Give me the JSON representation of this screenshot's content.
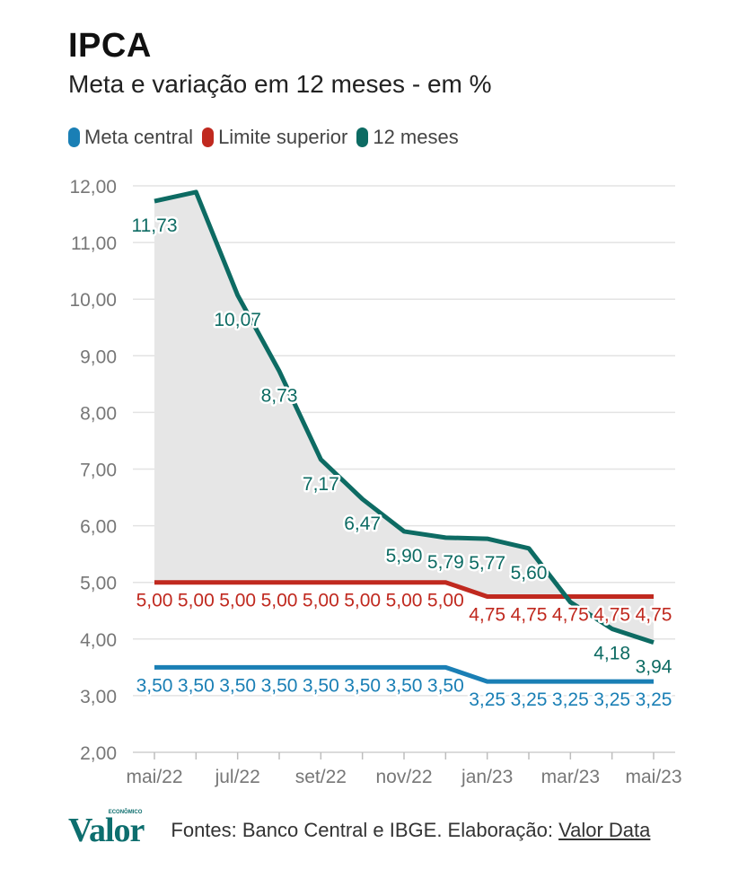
{
  "header": {
    "title": "IPCA",
    "subtitle": "Meta e variação em 12 meses - em %"
  },
  "legend": [
    {
      "label": "Meta central",
      "color": "#1a7fb5"
    },
    {
      "label": "Limite superior",
      "color": "#c0291f"
    },
    {
      "label": "12 meses",
      "color": "#0d6b63"
    }
  ],
  "footer": {
    "logo": "Valor",
    "logo_tag": "ECONÔMICO",
    "source_prefix": "Fontes: Banco Central e IBGE. Elaboração:",
    "source_link": "Valor Data"
  },
  "chart_data": {
    "type": "line",
    "title": "IPCA",
    "subtitle": "Meta e variação em 12 meses - em %",
    "xlabel": "",
    "ylabel": "",
    "ylim": [
      2,
      12
    ],
    "yticks": [
      "2,00",
      "3,00",
      "4,00",
      "5,00",
      "6,00",
      "7,00",
      "8,00",
      "9,00",
      "10,00",
      "11,00",
      "12,00"
    ],
    "categories": [
      "mai/22",
      "jun/22",
      "jul/22",
      "ago/22",
      "set/22",
      "out/22",
      "nov/22",
      "dez/22",
      "jan/23",
      "fev/23",
      "mar/23",
      "abr/23",
      "mai/23"
    ],
    "xticks": [
      "mai/22",
      "jul/22",
      "set/22",
      "nov/22",
      "jan/23",
      "mar/23",
      "mai/23"
    ],
    "grid": true,
    "legend_position": "top-left",
    "area_shaded_between": [
      "12 meses",
      "Limite superior"
    ],
    "series": [
      {
        "name": "Meta central",
        "color": "#1a7fb5",
        "values": [
          3.5,
          3.5,
          3.5,
          3.5,
          3.5,
          3.5,
          3.5,
          3.5,
          3.25,
          3.25,
          3.25,
          3.25,
          3.25
        ],
        "labels": [
          "3,50",
          "3,50",
          "3,50",
          "3,50",
          "3,50",
          "3,50",
          "3,50",
          "3,50",
          "3,25",
          "3,25",
          "3,25",
          "3,25",
          "3,25"
        ]
      },
      {
        "name": "Limite superior",
        "color": "#c0291f",
        "values": [
          5.0,
          5.0,
          5.0,
          5.0,
          5.0,
          5.0,
          5.0,
          5.0,
          4.75,
          4.75,
          4.75,
          4.75,
          4.75
        ],
        "labels": [
          "5,00",
          "5,00",
          "5,00",
          "5,00",
          "5,00",
          "5,00",
          "5,00",
          "5,00",
          "4,75",
          "4,75",
          "4,75",
          "4,75",
          "4,75"
        ]
      },
      {
        "name": "12 meses",
        "color": "#0d6b63",
        "values": [
          11.73,
          11.89,
          10.07,
          8.73,
          7.17,
          6.47,
          5.9,
          5.79,
          5.77,
          5.6,
          4.65,
          4.18,
          3.94
        ],
        "labels": [
          "11,73",
          "",
          "10,07",
          "8,73",
          "7,17",
          "6,47",
          "5,90",
          "5,79",
          "5,77",
          "5,60",
          "",
          "4,18",
          "3,94"
        ]
      }
    ]
  }
}
